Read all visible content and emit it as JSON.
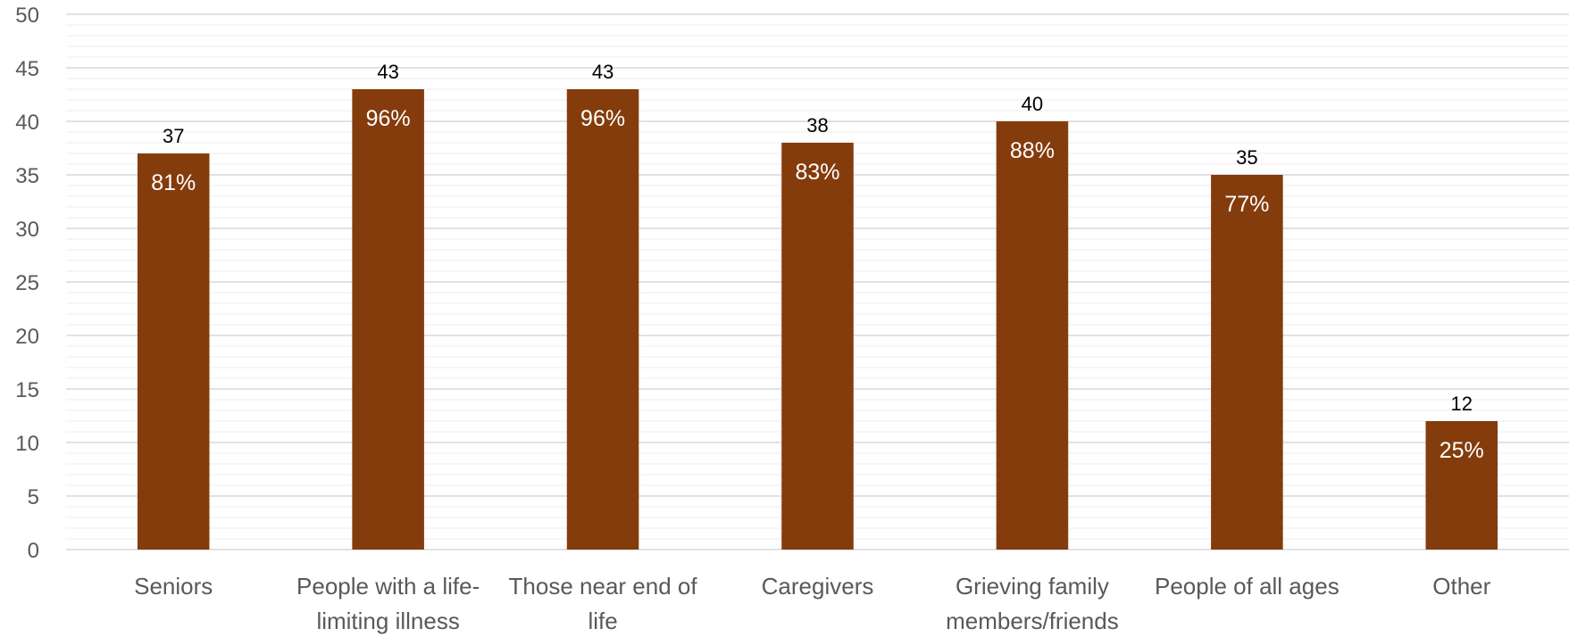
{
  "chart_data": {
    "type": "bar",
    "categories": [
      [
        "Seniors"
      ],
      [
        "People with a life-",
        "limiting illness"
      ],
      [
        "Those near end of",
        "life"
      ],
      [
        "Caregivers"
      ],
      [
        "Grieving family",
        "members/friends"
      ],
      [
        "People of all ages"
      ],
      [
        "Other"
      ]
    ],
    "values": [
      37,
      43,
      43,
      38,
      40,
      35,
      12
    ],
    "percent_labels": [
      "81%",
      "96%",
      "96%",
      "83%",
      "88%",
      "77%",
      "25%"
    ],
    "ylim": [
      0,
      50
    ],
    "yticks": [
      0,
      5,
      10,
      15,
      20,
      25,
      30,
      35,
      40,
      45,
      50
    ],
    "title": "",
    "xlabel": "",
    "ylabel": "",
    "grid": true,
    "colors": {
      "bar": "#843C0C",
      "major_grid": "#D9D9D9",
      "minor_grid": "#EDEDED",
      "tick_text": "#595959"
    }
  }
}
